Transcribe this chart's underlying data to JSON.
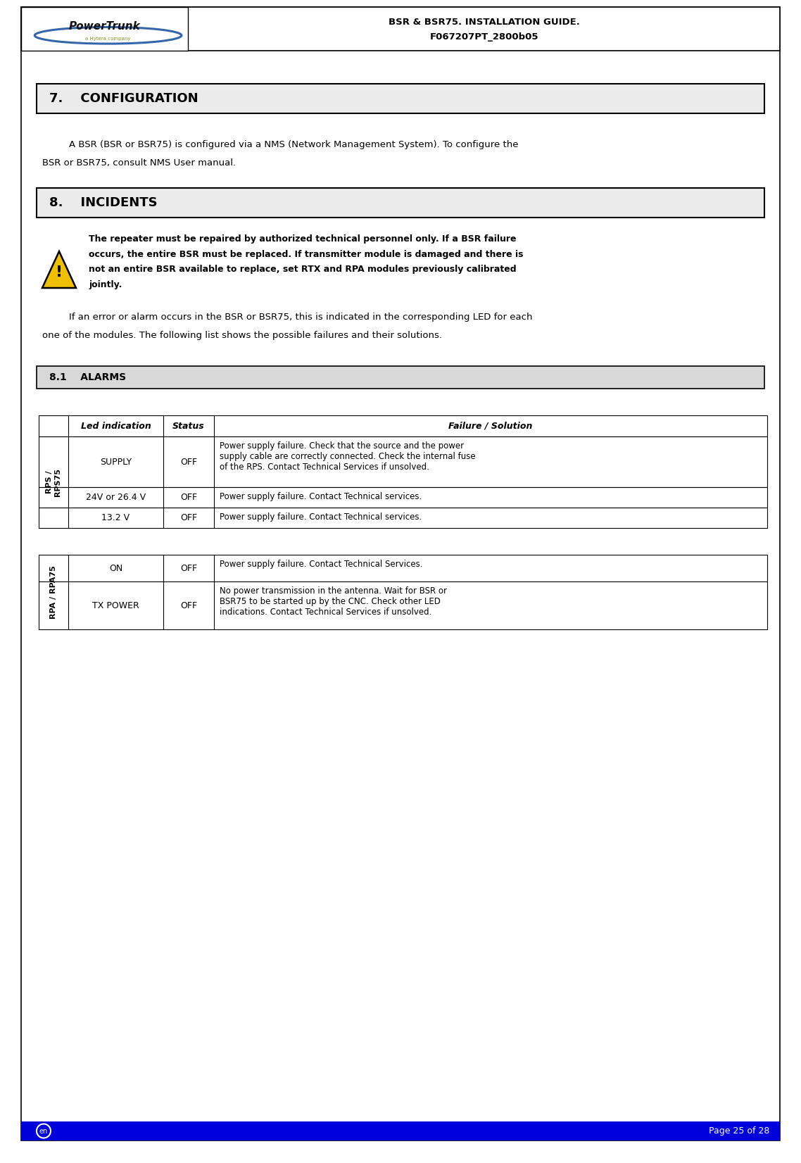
{
  "header_line1": "BSR & BSR75. INSTALLATION GUIDE.",
  "header_line2": "F067207PT_2800b05",
  "footer_left": "en",
  "footer_right": "Page 25 of 28",
  "section7_title": "7.    CONFIGURATION",
  "section7_body_line1": "A BSR (BSR or BSR75) is configured via a NMS (Network Management System). To configure the",
  "section7_body_line2": "BSR or BSR75, consult NMS User manual.",
  "section8_title": "8.    INCIDENTS",
  "warning_lines": [
    "The repeater must be repaired by authorized technical personnel only. If a BSR failure",
    "occurs, the entire BSR must be replaced. If transmitter module is damaged and there is",
    "not an entire BSR available to replace, set RTX and RPA modules previously calibrated",
    "jointly."
  ],
  "body8_line1": "If an error or alarm occurs in the BSR or BSR75, this is indicated in the corresponding LED for each",
  "body8_line2": "one of the modules. The following list shows the possible failures and their solutions.",
  "section81_title": "8.1    ALARMS",
  "tbl1_hdr": [
    "Led indication",
    "Status",
    "Failure / Solution"
  ],
  "tbl1_label": "RPS /\nRPS75",
  "tbl1_rows": [
    [
      "SUPPLY",
      "OFF",
      "Power supply failure. Check that the source and the power\nsupply cable are correctly connected. Check the internal fuse\nof the RPS. Contact Technical Services if unsolved."
    ],
    [
      "24V or 26.4 V",
      "OFF",
      "Power supply failure. Contact Technical services."
    ],
    [
      "13.2 V",
      "OFF",
      "Power supply failure. Contact Technical services."
    ]
  ],
  "tbl2_label": "RPA / RPA75",
  "tbl2_rows": [
    [
      "ON",
      "OFF",
      "Power supply failure. Contact Technical Services."
    ],
    [
      "TX POWER",
      "OFF",
      "No power transmission in the antenna. Wait for BSR or\nBSR75 to be started up by the CNC. Check other LED\nindications. Contact Technical Services if unsolved."
    ]
  ],
  "bg_color": "#ffffff",
  "section_bg": "#ebebeb",
  "section81_bg": "#d8d8d8",
  "footer_bg": "#0000dd",
  "logo_swoop_color": "#3366aa",
  "logo_text_color": "#111111",
  "logo_sub_color": "#7a9a20"
}
